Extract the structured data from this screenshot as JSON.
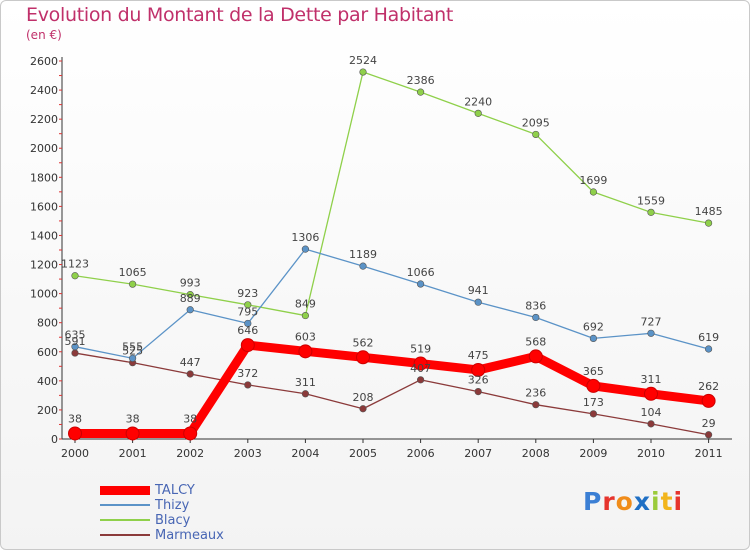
{
  "header": {
    "title": "Evolution du Montant de la Dette par Habitant",
    "subtitle": "(en €)"
  },
  "logo": {
    "text": "Proxiti"
  },
  "chart_data": {
    "type": "line",
    "title": "Evolution du Montant de la Dette par Habitant",
    "subtitle": "(en €)",
    "xlabel": "",
    "ylabel": "",
    "x": [
      "2000",
      "2001",
      "2002",
      "2003",
      "2004",
      "2005",
      "2006",
      "2007",
      "2008",
      "2009",
      "2010",
      "2011"
    ],
    "ylim": [
      0,
      2600
    ],
    "yticks": [
      0,
      200,
      400,
      600,
      800,
      1000,
      1200,
      1400,
      1600,
      1800,
      2000,
      2200,
      2400,
      2600
    ],
    "grid": false,
    "legend_position": "bottom-left",
    "series": [
      {
        "name": "TALCY",
        "color": "#ff0000",
        "values": [
          38,
          38,
          38,
          646,
          603,
          562,
          519,
          475,
          568,
          365,
          311,
          262
        ]
      },
      {
        "name": "Thizy",
        "color": "#5b93c7",
        "values": [
          635,
          555,
          889,
          795,
          1306,
          1189,
          1066,
          941,
          836,
          692,
          727,
          619
        ]
      },
      {
        "name": "Blacy",
        "color": "#8fd04a",
        "values": [
          1123,
          1065,
          993,
          923,
          849,
          2524,
          2386,
          2240,
          2095,
          1699,
          1559,
          1485
        ]
      },
      {
        "name": "Marmeaux",
        "color": "#8b3a3a",
        "values": [
          591,
          525,
          447,
          372,
          311,
          208,
          407,
          326,
          236,
          173,
          104,
          29
        ]
      }
    ]
  }
}
